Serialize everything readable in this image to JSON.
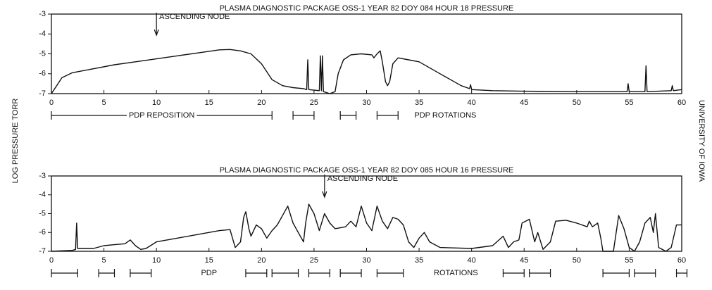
{
  "y_label": "LOG PRESSURE TORR",
  "credit": "UNIVERSITY OF IOWA",
  "chart_data": [
    {
      "type": "line",
      "title": "PLASMA DIAGNOSTIC PACKAGE  OSS-1   YEAR 82   DOY 084   HOUR 18   PRESSURE",
      "color": "#111111",
      "xlim": [
        0,
        60
      ],
      "xticks": [
        0,
        5,
        10,
        15,
        20,
        25,
        30,
        35,
        40,
        45,
        50,
        55,
        60
      ],
      "ylim": [
        -7,
        -3
      ],
      "yticks": [
        -3,
        -4,
        -5,
        -6,
        -7
      ],
      "x": [
        0,
        0.5,
        1,
        2,
        4,
        6,
        8,
        10,
        12,
        14,
        16,
        17,
        18,
        19,
        20,
        20.5,
        21,
        22,
        23,
        24,
        24.3,
        24.4,
        24.5,
        25.5,
        25.6,
        25.7,
        25.8,
        25.9,
        26.5,
        27,
        27.3,
        27.8,
        28.5,
        29.5,
        30.5,
        30.7,
        31,
        31.3,
        31.5,
        31.8,
        32,
        32.2,
        32.5,
        33,
        34,
        35,
        36,
        37,
        38,
        39,
        39.8,
        39.9,
        40,
        42,
        45,
        50,
        54.8,
        54.9,
        55,
        56.5,
        56.6,
        56.7,
        59,
        59.1,
        59.2,
        60
      ],
      "values": [
        -7,
        -6.6,
        -6.2,
        -5.95,
        -5.75,
        -5.55,
        -5.4,
        -5.25,
        -5.1,
        -4.95,
        -4.8,
        -4.78,
        -4.85,
        -5.0,
        -5.5,
        -5.9,
        -6.3,
        -6.6,
        -6.7,
        -6.75,
        -6.8,
        -5.3,
        -6.8,
        -6.85,
        -5.1,
        -6.85,
        -5.1,
        -6.9,
        -7,
        -6.9,
        -6.0,
        -5.3,
        -5.05,
        -5.0,
        -5.05,
        -5.2,
        -5.0,
        -4.85,
        -5.4,
        -6.4,
        -6.6,
        -6.4,
        -5.5,
        -5.2,
        -5.3,
        -5.4,
        -5.7,
        -6.0,
        -6.3,
        -6.6,
        -6.75,
        -6.55,
        -6.8,
        -6.85,
        -6.88,
        -6.9,
        -6.9,
        -6.5,
        -6.9,
        -6.9,
        -5.6,
        -6.9,
        -6.85,
        -6.6,
        -6.85,
        -6.8
      ],
      "annotations": [
        {
          "text": "ASCENDING NODE",
          "x": 10
        }
      ],
      "intervals": [
        [
          0,
          21
        ],
        [
          23,
          25
        ],
        [
          27.5,
          29
        ],
        [
          31,
          33
        ]
      ],
      "interval_labels": [
        {
          "text": "PDP REPOSITION",
          "x": 10.5
        },
        {
          "text": "PDP ROTATIONS",
          "x": 37.5
        }
      ]
    },
    {
      "type": "line",
      "title": "PLASMA DIAGNOSTIC PACKAGE  OSS-1   YEAR 82   DOY 085   HOUR 16   PRESSURE",
      "color": "#111111",
      "xlim": [
        0,
        60
      ],
      "xticks": [
        0,
        5,
        10,
        15,
        20,
        25,
        30,
        35,
        40,
        45,
        50,
        55,
        60
      ],
      "ylim": [
        -7,
        -3
      ],
      "yticks": [
        -3,
        -4,
        -5,
        -6,
        -7
      ],
      "x": [
        0,
        2,
        2.3,
        2.4,
        2.5,
        4,
        5,
        6,
        7,
        7.5,
        8,
        8.5,
        9,
        10,
        12,
        14,
        16,
        17,
        17.5,
        18,
        18.3,
        18.5,
        18.8,
        19,
        19.5,
        20,
        20.5,
        21,
        21.5,
        22,
        22.5,
        23,
        23.5,
        24,
        24.2,
        24.5,
        25,
        25.5,
        26,
        26.5,
        27,
        28,
        28.5,
        29,
        29.5,
        30,
        30.5,
        31,
        31.5,
        32,
        32.5,
        33,
        33.5,
        34,
        34.5,
        35,
        35.5,
        36,
        37,
        40,
        42,
        43,
        43.5,
        44,
        44.5,
        44.8,
        45.5,
        46,
        46.3,
        46.8,
        47.5,
        48,
        49,
        50,
        51,
        51.2,
        51.5,
        52,
        52.3,
        52.5,
        53.5,
        54,
        54.5,
        55,
        55.5,
        56,
        56.5,
        57,
        57.3,
        57.5,
        57.8,
        58.5,
        59,
        59.5,
        60
      ],
      "values": [
        -7,
        -6.95,
        -6.9,
        -5.5,
        -6.85,
        -6.85,
        -6.7,
        -6.65,
        -6.6,
        -6.4,
        -6.7,
        -6.9,
        -6.85,
        -6.5,
        -6.3,
        -6.1,
        -5.9,
        -5.85,
        -6.8,
        -6.5,
        -5.2,
        -4.9,
        -5.8,
        -6.2,
        -5.6,
        -5.8,
        -6.3,
        -5.9,
        -5.6,
        -5.1,
        -4.6,
        -5.5,
        -6.0,
        -6.5,
        -5.5,
        -4.5,
        -5.0,
        -5.9,
        -5.0,
        -5.5,
        -5.8,
        -5.7,
        -5.4,
        -5.7,
        -4.6,
        -5.5,
        -5.9,
        -4.6,
        -5.4,
        -5.8,
        -5.2,
        -5.3,
        -5.6,
        -6.5,
        -6.8,
        -6.3,
        -6.0,
        -6.5,
        -6.8,
        -6.85,
        -6.7,
        -6.2,
        -6.8,
        -6.5,
        -6.4,
        -5.5,
        -5.3,
        -6.5,
        -6.0,
        -6.9,
        -6.5,
        -5.4,
        -5.35,
        -5.5,
        -5.7,
        -5.4,
        -5.7,
        -5.5,
        -6.3,
        -7.0,
        -7.0,
        -5.1,
        -5.8,
        -6.8,
        -7.0,
        -6.5,
        -5.5,
        -5.2,
        -6.0,
        -5.0,
        -6.8,
        -7.0,
        -6.8,
        -5.6,
        -5.6
      ],
      "annotations": [
        {
          "text": "ASCENDING NODE",
          "x": 26
        }
      ],
      "intervals": [
        [
          0,
          2.5
        ],
        [
          4.5,
          6
        ],
        [
          7.5,
          9.5
        ],
        [
          18.5,
          20.5
        ],
        [
          21,
          23.5
        ],
        [
          24.5,
          26.5
        ],
        [
          27.5,
          29.5
        ],
        [
          31,
          33.5
        ],
        [
          43,
          45
        ],
        [
          45.5,
          47.5
        ],
        [
          52.5,
          55
        ],
        [
          55.5,
          57.5
        ],
        [
          59.5,
          60.5
        ]
      ],
      "interval_labels": [
        {
          "text": "PDP",
          "x": 15
        },
        {
          "text": "ROTATIONS",
          "x": 38.5
        }
      ]
    }
  ]
}
